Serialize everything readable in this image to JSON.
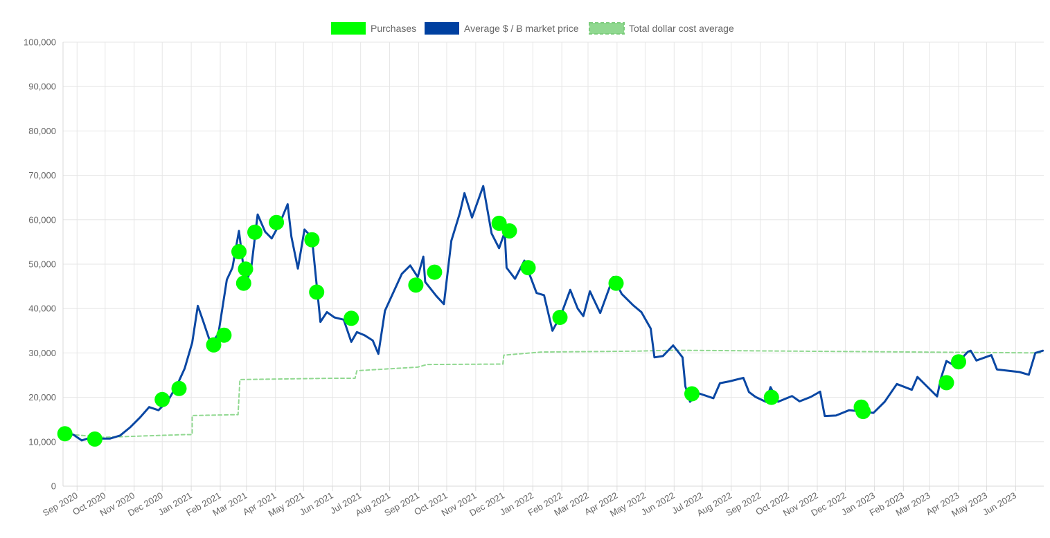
{
  "chart_data": {
    "type": "line",
    "title": "",
    "xlabel": "",
    "ylabel": "",
    "ylim": [
      0,
      100000
    ],
    "y_ticks": [
      0,
      10000,
      20000,
      30000,
      40000,
      50000,
      60000,
      70000,
      80000,
      90000,
      100000
    ],
    "y_tick_labels": [
      "0",
      "10,000",
      "20,000",
      "30,000",
      "40,000",
      "50,000",
      "60,000",
      "70,000",
      "80,000",
      "90,000",
      "100,000"
    ],
    "x_range": [
      "2020-08-17",
      "2023-07-01"
    ],
    "x_tick_labels": [
      "Sep 2020",
      "Oct 2020",
      "Nov 2020",
      "Dec 2020",
      "Jan 2021",
      "Feb 2021",
      "Mar 2021",
      "Apr 2021",
      "May 2021",
      "Jun 2021",
      "Jul 2021",
      "Aug 2021",
      "Sep 2021",
      "Oct 2021",
      "Nov 2021",
      "Dec 2021",
      "Jan 2022",
      "Feb 2022",
      "Mar 2022",
      "Apr 2022",
      "May 2022",
      "Jun 2022",
      "Jul 2022",
      "Aug 2022",
      "Sep 2022",
      "Oct 2022",
      "Nov 2022",
      "Dec 2022",
      "Jan 2023",
      "Feb 2023",
      "Mar 2023",
      "Apr 2023",
      "May 2023",
      "Jun 2023"
    ],
    "grid": true,
    "legend_position": "top-center",
    "legend": [
      {
        "label": "Purchases",
        "color": "#00ff00",
        "style": "fill"
      },
      {
        "label": "Average $ / Ƀ market price",
        "color": "#0040a0",
        "style": "fill"
      },
      {
        "label": "Total dollar cost average",
        "color": "#90d890",
        "style": "dashed"
      }
    ],
    "series": [
      {
        "name": "Average $ / Ƀ market price",
        "color": "#0a47a3",
        "points": [
          [
            "2020-08-17",
            11900
          ],
          [
            "2020-08-28",
            11600
          ],
          [
            "2020-09-06",
            10300
          ],
          [
            "2020-09-15",
            10900
          ],
          [
            "2020-09-26",
            10700
          ],
          [
            "2020-10-06",
            10700
          ],
          [
            "2020-10-17",
            11400
          ],
          [
            "2020-10-28",
            13300
          ],
          [
            "2020-11-07",
            15400
          ],
          [
            "2020-11-17",
            17800
          ],
          [
            "2020-11-27",
            17100
          ],
          [
            "2020-12-07",
            19200
          ],
          [
            "2020-12-17",
            22800
          ],
          [
            "2020-12-25",
            26500
          ],
          [
            "2021-01-02",
            32300
          ],
          [
            "2021-01-08",
            40600
          ],
          [
            "2021-01-14",
            37000
          ],
          [
            "2021-01-22",
            32000
          ],
          [
            "2021-01-30",
            34300
          ],
          [
            "2021-02-08",
            46500
          ],
          [
            "2021-02-14",
            49200
          ],
          [
            "2021-02-21",
            57500
          ],
          [
            "2021-02-28",
            45500
          ],
          [
            "2021-03-06",
            49000
          ],
          [
            "2021-03-13",
            61200
          ],
          [
            "2021-03-21",
            57300
          ],
          [
            "2021-03-28",
            55800
          ],
          [
            "2021-04-05",
            58900
          ],
          [
            "2021-04-14",
            63500
          ],
          [
            "2021-04-18",
            56200
          ],
          [
            "2021-04-25",
            49000
          ],
          [
            "2021-05-02",
            57800
          ],
          [
            "2021-05-10",
            56000
          ],
          [
            "2021-05-13",
            49500
          ],
          [
            "2021-05-19",
            37000
          ],
          [
            "2021-05-26",
            39200
          ],
          [
            "2021-06-03",
            38000
          ],
          [
            "2021-06-13",
            37500
          ],
          [
            "2021-06-21",
            32500
          ],
          [
            "2021-06-27",
            34700
          ],
          [
            "2021-07-05",
            34000
          ],
          [
            "2021-07-14",
            32800
          ],
          [
            "2021-07-20",
            29800
          ],
          [
            "2021-07-27",
            39500
          ],
          [
            "2021-08-07",
            44600
          ],
          [
            "2021-08-14",
            47800
          ],
          [
            "2021-08-23",
            49700
          ],
          [
            "2021-08-31",
            47100
          ],
          [
            "2021-09-06",
            51700
          ],
          [
            "2021-09-08",
            46000
          ],
          [
            "2021-09-20",
            42800
          ],
          [
            "2021-09-28",
            41000
          ],
          [
            "2021-10-06",
            55300
          ],
          [
            "2021-10-15",
            61500
          ],
          [
            "2021-10-20",
            66000
          ],
          [
            "2021-10-28",
            60500
          ],
          [
            "2021-11-09",
            67600
          ],
          [
            "2021-11-18",
            56900
          ],
          [
            "2021-11-26",
            53600
          ],
          [
            "2021-12-02",
            57200
          ],
          [
            "2021-12-04",
            49200
          ],
          [
            "2021-12-13",
            46700
          ],
          [
            "2021-12-23",
            50800
          ],
          [
            "2022-01-05",
            43500
          ],
          [
            "2022-01-13",
            43000
          ],
          [
            "2022-01-22",
            35000
          ],
          [
            "2022-01-31",
            38500
          ],
          [
            "2022-02-10",
            44200
          ],
          [
            "2022-02-18",
            40000
          ],
          [
            "2022-02-24",
            38300
          ],
          [
            "2022-03-03",
            43900
          ],
          [
            "2022-03-14",
            39000
          ],
          [
            "2022-03-28",
            47100
          ],
          [
            "2022-04-06",
            43300
          ],
          [
            "2022-04-18",
            40800
          ],
          [
            "2022-04-27",
            39200
          ],
          [
            "2022-05-07",
            35500
          ],
          [
            "2022-05-11",
            29000
          ],
          [
            "2022-05-20",
            29300
          ],
          [
            "2022-05-31",
            31700
          ],
          [
            "2022-06-10",
            29000
          ],
          [
            "2022-06-13",
            22500
          ],
          [
            "2022-06-18",
            19000
          ],
          [
            "2022-06-26",
            21000
          ],
          [
            "2022-07-13",
            19800
          ],
          [
            "2022-07-20",
            23200
          ],
          [
            "2022-07-30",
            23600
          ],
          [
            "2022-08-14",
            24400
          ],
          [
            "2022-08-20",
            21200
          ],
          [
            "2022-08-27",
            20100
          ],
          [
            "2022-09-07",
            19000
          ],
          [
            "2022-09-12",
            22300
          ],
          [
            "2022-09-20",
            19000
          ],
          [
            "2022-10-05",
            20300
          ],
          [
            "2022-10-13",
            19100
          ],
          [
            "2022-10-25",
            20100
          ],
          [
            "2022-11-04",
            21300
          ],
          [
            "2022-11-09",
            15800
          ],
          [
            "2022-11-21",
            15900
          ],
          [
            "2022-12-05",
            17100
          ],
          [
            "2022-12-20",
            16800
          ],
          [
            "2022-12-31",
            16500
          ],
          [
            "2023-01-12",
            19000
          ],
          [
            "2023-01-25",
            23000
          ],
          [
            "2023-02-10",
            21700
          ],
          [
            "2023-02-16",
            24600
          ],
          [
            "2023-03-09",
            20200
          ],
          [
            "2023-03-13",
            24200
          ],
          [
            "2023-03-19",
            28200
          ],
          [
            "2023-03-28",
            27100
          ],
          [
            "2023-04-11",
            30300
          ],
          [
            "2023-04-14",
            30500
          ],
          [
            "2023-04-20",
            28300
          ],
          [
            "2023-05-06",
            29500
          ],
          [
            "2023-05-12",
            26300
          ],
          [
            "2023-06-05",
            25700
          ],
          [
            "2023-06-15",
            25100
          ],
          [
            "2023-06-22",
            30000
          ],
          [
            "2023-06-30",
            30500
          ]
        ]
      },
      {
        "name": "Total dollar cost average",
        "color": "#90d890",
        "style": "dashed",
        "points": [
          [
            "2020-08-17",
            11800
          ],
          [
            "2020-09-28",
            11000
          ],
          [
            "2020-12-25",
            11600
          ],
          [
            "2021-01-02",
            11600
          ],
          [
            "2021-01-02",
            15900
          ],
          [
            "2021-02-20",
            16100
          ],
          [
            "2021-02-22",
            24000
          ],
          [
            "2021-06-01",
            24300
          ],
          [
            "2021-06-25",
            24300
          ],
          [
            "2021-06-27",
            26000
          ],
          [
            "2021-08-31",
            26800
          ],
          [
            "2021-09-10",
            27400
          ],
          [
            "2021-11-30",
            27500
          ],
          [
            "2021-12-01",
            29500
          ],
          [
            "2022-01-10",
            30200
          ],
          [
            "2022-04-20",
            30400
          ],
          [
            "2022-05-31",
            30600
          ],
          [
            "2023-06-30",
            30000
          ]
        ]
      }
    ],
    "purchases": [
      {
        "date": "2020-08-19",
        "price": 11800
      },
      {
        "date": "2020-09-20",
        "price": 10600
      },
      {
        "date": "2020-12-01",
        "price": 19500
      },
      {
        "date": "2020-12-19",
        "price": 22000
      },
      {
        "date": "2021-01-25",
        "price": 31800
      },
      {
        "date": "2021-02-05",
        "price": 34000
      },
      {
        "date": "2021-02-21",
        "price": 52800
      },
      {
        "date": "2021-02-26",
        "price": 45700
      },
      {
        "date": "2021-02-28",
        "price": 48900
      },
      {
        "date": "2021-03-10",
        "price": 57200
      },
      {
        "date": "2021-04-02",
        "price": 59400
      },
      {
        "date": "2021-05-10",
        "price": 55500
      },
      {
        "date": "2021-05-15",
        "price": 43700
      },
      {
        "date": "2021-06-21",
        "price": 37800
      },
      {
        "date": "2021-08-29",
        "price": 45300
      },
      {
        "date": "2021-09-18",
        "price": 48200
      },
      {
        "date": "2021-11-26",
        "price": 59200
      },
      {
        "date": "2021-12-07",
        "price": 57500
      },
      {
        "date": "2021-12-27",
        "price": 49200
      },
      {
        "date": "2022-01-30",
        "price": 38000
      },
      {
        "date": "2022-03-31",
        "price": 45700
      },
      {
        "date": "2022-06-20",
        "price": 20800
      },
      {
        "date": "2022-09-13",
        "price": 20000
      },
      {
        "date": "2022-12-18",
        "price": 17800
      },
      {
        "date": "2022-12-20",
        "price": 16800
      },
      {
        "date": "2023-03-19",
        "price": 23300
      },
      {
        "date": "2023-04-01",
        "price": 28000
      }
    ]
  }
}
